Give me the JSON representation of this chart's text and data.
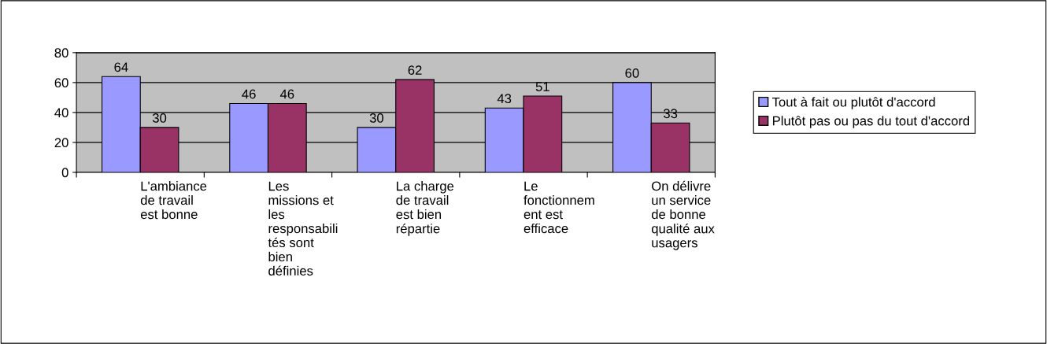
{
  "chart_data": {
    "type": "bar",
    "categories": [
      "L'ambiance\nde travail\nest bonne",
      "Les\nmissions et\nles\nresponsabili\ntés sont\nbien\ndéfinies",
      "La charge\nde travail\nest bien\nrépartie",
      "Le\nfonctionnem\nent est\nefficace",
      "On délivre\nun service\nde bonne\nqualité aux\nusagers"
    ],
    "series": [
      {
        "name": "Tout à fait ou plutôt d'accord",
        "color": "#9999ff",
        "values": [
          64,
          46,
          30,
          43,
          60
        ]
      },
      {
        "name": "Plutôt pas ou pas du tout d'accord",
        "color": "#993366",
        "values": [
          30,
          46,
          62,
          51,
          33
        ]
      }
    ],
    "ylim": [
      0,
      80
    ],
    "yticks": [
      0,
      20,
      40,
      60,
      80
    ],
    "grid": "y",
    "legend": "right",
    "data_labels": true
  }
}
